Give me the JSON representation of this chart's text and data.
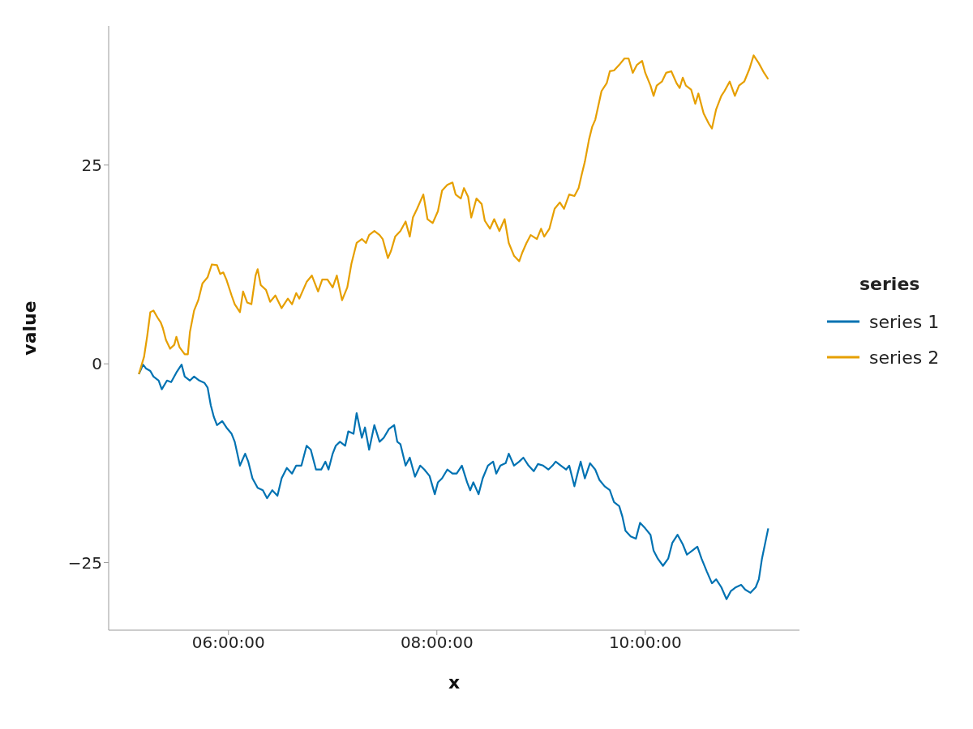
{
  "chart_data": {
    "type": "line",
    "xlabel": "x",
    "ylabel": "value",
    "legend_title": "series",
    "legend": "right",
    "grid": false,
    "marker": "none",
    "line_style": "solid",
    "xlim": [
      4.85,
      11.48
    ],
    "ylim": [
      -33.5,
      42.5
    ],
    "xticks": [
      {
        "value": 6,
        "label": "06:00:00"
      },
      {
        "value": 8,
        "label": "08:00:00"
      },
      {
        "value": 10,
        "label": "10:00:00"
      }
    ],
    "yticks": [
      {
        "value": -25,
        "label": "−25"
      },
      0,
      25
    ],
    "series": [
      {
        "name": "series 1",
        "color": "#0072b2",
        "x": [
          5.14,
          5.18,
          5.21,
          5.25,
          5.28,
          5.33,
          5.36,
          5.41,
          5.45,
          5.5,
          5.55,
          5.58,
          5.63,
          5.67,
          5.72,
          5.77,
          5.8,
          5.83,
          5.86,
          5.89,
          5.94,
          5.98,
          6.03,
          6.06,
          6.11,
          6.16,
          6.19,
          6.23,
          6.28,
          6.33,
          6.37,
          6.42,
          6.47,
          6.51,
          6.56,
          6.61,
          6.65,
          6.7,
          6.75,
          6.79,
          6.84,
          6.89,
          6.93,
          6.96,
          7.0,
          7.03,
          7.07,
          7.12,
          7.15,
          7.2,
          7.23,
          7.28,
          7.31,
          7.35,
          7.4,
          7.45,
          7.49,
          7.54,
          7.59,
          7.62,
          7.65,
          7.7,
          7.74,
          7.79,
          7.84,
          7.88,
          7.93,
          7.98,
          8.01,
          8.05,
          8.1,
          8.15,
          8.19,
          8.24,
          8.29,
          8.32,
          8.35,
          8.4,
          8.44,
          8.49,
          8.54,
          8.57,
          8.61,
          8.66,
          8.69,
          8.74,
          8.79,
          8.83,
          8.88,
          8.93,
          8.97,
          9.02,
          9.07,
          9.11,
          9.14,
          9.19,
          9.24,
          9.27,
          9.32,
          9.35,
          9.38,
          9.42,
          9.47,
          9.52,
          9.56,
          9.61,
          9.66,
          9.7,
          9.75,
          9.78,
          9.81,
          9.86,
          9.91,
          9.95,
          10.0,
          10.05,
          10.08,
          10.12,
          10.17,
          10.22,
          10.26,
          10.31,
          10.36,
          10.4,
          10.45,
          10.5,
          10.54,
          10.59,
          10.64,
          10.68,
          10.73,
          10.78,
          10.82,
          10.87,
          10.92,
          10.96,
          11.01,
          11.06,
          11.09,
          11.12,
          11.18
        ],
        "values": [
          -1.3,
          -0.1,
          -0.6,
          -0.9,
          -1.6,
          -2.1,
          -3.2,
          -2.1,
          -2.3,
          -1.1,
          -0.1,
          -1.6,
          -2.1,
          -1.6,
          -2.1,
          -2.4,
          -3.0,
          -5.2,
          -6.7,
          -7.7,
          -7.2,
          -8.0,
          -8.8,
          -9.8,
          -12.8,
          -11.3,
          -12.3,
          -14.4,
          -15.6,
          -15.9,
          -16.9,
          -15.9,
          -16.6,
          -14.4,
          -13.1,
          -13.8,
          -12.8,
          -12.8,
          -10.3,
          -10.8,
          -13.3,
          -13.3,
          -12.3,
          -13.3,
          -11.3,
          -10.3,
          -9.8,
          -10.3,
          -8.5,
          -8.8,
          -6.2,
          -9.3,
          -8.0,
          -10.8,
          -7.7,
          -9.8,
          -9.3,
          -8.2,
          -7.7,
          -9.8,
          -10.1,
          -12.8,
          -11.8,
          -14.2,
          -12.8,
          -13.3,
          -14.1,
          -16.4,
          -14.9,
          -14.4,
          -13.3,
          -13.8,
          -13.8,
          -12.8,
          -14.9,
          -15.9,
          -14.9,
          -16.4,
          -14.4,
          -12.8,
          -12.3,
          -13.8,
          -12.8,
          -12.5,
          -11.3,
          -12.8,
          -12.3,
          -11.8,
          -12.8,
          -13.5,
          -12.6,
          -12.8,
          -13.3,
          -12.8,
          -12.3,
          -12.8,
          -13.3,
          -12.8,
          -15.4,
          -13.8,
          -12.3,
          -14.4,
          -12.5,
          -13.3,
          -14.6,
          -15.4,
          -15.9,
          -17.4,
          -17.9,
          -19.2,
          -21.0,
          -21.7,
          -22.0,
          -20.0,
          -20.7,
          -21.5,
          -23.5,
          -24.5,
          -25.4,
          -24.5,
          -22.5,
          -21.5,
          -22.7,
          -24.0,
          -23.5,
          -23.0,
          -24.5,
          -26.1,
          -27.6,
          -27.1,
          -28.1,
          -29.6,
          -28.6,
          -28.1,
          -27.8,
          -28.4,
          -28.8,
          -28.1,
          -27.1,
          -24.5,
          -20.7
        ]
      },
      {
        "name": "series 2",
        "color": "#e69f00",
        "x": [
          5.14,
          5.19,
          5.22,
          5.25,
          5.28,
          5.32,
          5.35,
          5.37,
          5.4,
          5.44,
          5.48,
          5.5,
          5.53,
          5.58,
          5.61,
          5.63,
          5.67,
          5.71,
          5.75,
          5.8,
          5.84,
          5.89,
          5.92,
          5.95,
          5.98,
          6.03,
          6.06,
          6.11,
          6.14,
          6.18,
          6.22,
          6.26,
          6.28,
          6.31,
          6.36,
          6.4,
          6.45,
          6.51,
          6.57,
          6.61,
          6.65,
          6.68,
          6.75,
          6.8,
          6.86,
          6.9,
          6.95,
          7.0,
          7.04,
          7.09,
          7.14,
          7.18,
          7.23,
          7.28,
          7.32,
          7.35,
          7.4,
          7.45,
          7.48,
          7.53,
          7.56,
          7.6,
          7.65,
          7.7,
          7.74,
          7.77,
          7.81,
          7.87,
          7.91,
          7.96,
          8.01,
          8.05,
          8.1,
          8.15,
          8.18,
          8.23,
          8.26,
          8.3,
          8.33,
          8.38,
          8.43,
          8.46,
          8.51,
          8.55,
          8.6,
          8.65,
          8.69,
          8.74,
          8.79,
          8.82,
          8.86,
          8.9,
          8.96,
          9.0,
          9.03,
          9.08,
          9.13,
          9.18,
          9.22,
          9.27,
          9.32,
          9.36,
          9.39,
          9.42,
          9.46,
          9.49,
          9.52,
          9.55,
          9.58,
          9.63,
          9.66,
          9.7,
          9.75,
          9.8,
          9.84,
          9.88,
          9.92,
          9.97,
          10.0,
          10.05,
          10.08,
          10.11,
          10.16,
          10.2,
          10.25,
          10.3,
          10.33,
          10.36,
          10.39,
          10.44,
          10.48,
          10.51,
          10.56,
          10.61,
          10.64,
          10.68,
          10.73,
          10.76,
          10.81,
          10.86,
          10.9,
          10.95,
          11.0,
          11.04,
          11.09,
          11.14,
          11.18
        ],
        "values": [
          -1.3,
          0.9,
          3.5,
          6.5,
          6.7,
          5.8,
          5.2,
          4.5,
          3.0,
          1.9,
          2.4,
          3.4,
          2.1,
          1.2,
          1.2,
          4.0,
          6.7,
          8.0,
          10.1,
          10.9,
          12.5,
          12.4,
          11.3,
          11.5,
          10.6,
          8.6,
          7.5,
          6.5,
          9.1,
          7.7,
          7.5,
          11.1,
          11.9,
          9.9,
          9.3,
          7.8,
          8.6,
          7.0,
          8.2,
          7.5,
          8.9,
          8.2,
          10.3,
          11.1,
          9.1,
          10.6,
          10.6,
          9.6,
          11.1,
          8.0,
          9.6,
          12.6,
          15.2,
          15.7,
          15.2,
          16.2,
          16.7,
          16.2,
          15.7,
          13.3,
          14.2,
          16.0,
          16.7,
          17.9,
          16.0,
          18.4,
          19.5,
          21.3,
          18.2,
          17.7,
          19.2,
          21.8,
          22.5,
          22.8,
          21.3,
          20.8,
          22.1,
          21.0,
          18.4,
          20.8,
          20.1,
          18.0,
          17.0,
          18.2,
          16.7,
          18.2,
          15.2,
          13.6,
          12.9,
          14.0,
          15.2,
          16.2,
          15.7,
          17.0,
          16.0,
          17.0,
          19.5,
          20.3,
          19.5,
          21.3,
          21.1,
          22.1,
          23.8,
          25.4,
          28.2,
          29.8,
          30.7,
          32.5,
          34.3,
          35.3,
          36.8,
          36.9,
          37.6,
          38.4,
          38.4,
          36.6,
          37.6,
          38.1,
          36.6,
          35.0,
          33.7,
          35.0,
          35.5,
          36.6,
          36.8,
          35.3,
          34.7,
          36.0,
          35.0,
          34.5,
          32.7,
          34.0,
          31.5,
          30.2,
          29.6,
          32.0,
          33.7,
          34.3,
          35.5,
          33.7,
          35.0,
          35.5,
          37.1,
          38.8,
          37.8,
          36.6,
          35.8
        ]
      }
    ]
  }
}
